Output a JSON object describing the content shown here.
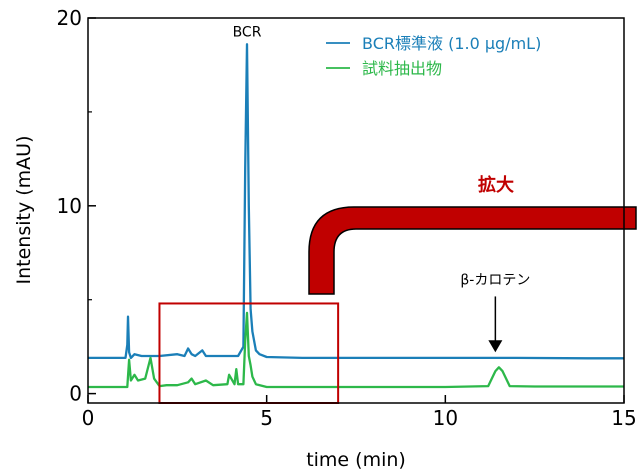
{
  "chart_data": {
    "type": "line",
    "title": "",
    "xlabel": "time (min)",
    "ylabel": "Intensity (mAU)",
    "xlim": [
      0,
      15
    ],
    "ylim": [
      -0.5,
      20
    ],
    "xticks": [
      0,
      5,
      10,
      15
    ],
    "yticks": [
      0,
      10,
      20
    ],
    "legend_position": "top-right",
    "series": [
      {
        "name": "BCR標準液 (1.0 µg/mL)",
        "color": "#1b7fb8",
        "x": [
          0.0,
          1.05,
          1.1,
          1.12,
          1.15,
          1.2,
          1.3,
          1.5,
          2.0,
          2.5,
          2.7,
          2.8,
          2.9,
          3.0,
          3.2,
          3.3,
          3.4,
          3.6,
          4.0,
          4.2,
          4.35,
          4.4,
          4.45,
          4.5,
          4.55,
          4.6,
          4.7,
          4.8,
          5.0,
          6.0,
          8.0,
          10.0,
          11.0,
          11.5,
          12.0,
          14.0,
          15.0
        ],
        "y": [
          1.9,
          1.9,
          2.6,
          4.1,
          2.2,
          1.9,
          2.1,
          2.0,
          2.0,
          2.1,
          2.0,
          2.4,
          2.1,
          2.0,
          2.3,
          2.0,
          2.0,
          2.0,
          2.0,
          2.0,
          2.5,
          12.0,
          18.6,
          10.0,
          4.5,
          3.3,
          2.3,
          2.1,
          1.95,
          1.9,
          1.9,
          1.9,
          1.9,
          1.9,
          1.9,
          1.88,
          1.88
        ]
      },
      {
        "name": "試料抽出物",
        "color": "#2db84a",
        "x": [
          0.0,
          1.1,
          1.15,
          1.2,
          1.3,
          1.4,
          1.6,
          1.75,
          1.85,
          2.0,
          2.2,
          2.5,
          2.8,
          2.9,
          3.0,
          3.3,
          3.5,
          3.9,
          3.95,
          4.1,
          4.15,
          4.2,
          4.35,
          4.4,
          4.45,
          4.5,
          4.55,
          4.6,
          4.7,
          5.0,
          6.0,
          8.0,
          10.0,
          11.2,
          11.4,
          11.5,
          11.6,
          11.8,
          12.5,
          14.0,
          15.0
        ],
        "y": [
          0.35,
          0.35,
          1.8,
          0.7,
          1.0,
          0.7,
          0.8,
          1.9,
          0.8,
          0.4,
          0.45,
          0.45,
          0.6,
          0.8,
          0.5,
          0.7,
          0.45,
          0.5,
          1.0,
          0.5,
          1.3,
          0.5,
          0.5,
          2.8,
          4.3,
          2.0,
          1.5,
          0.9,
          0.5,
          0.35,
          0.35,
          0.35,
          0.35,
          0.4,
          1.2,
          1.4,
          1.2,
          0.4,
          0.38,
          0.38,
          0.38
        ]
      }
    ],
    "annotations": [
      {
        "text": "BCR",
        "x": 4.45,
        "y": 18.9
      },
      {
        "text": "β-カロテン",
        "x": 11.4,
        "y": 5.6,
        "arrow_to": [
          11.4,
          2.2
        ]
      },
      {
        "text": "拡大",
        "color": "#c00000"
      }
    ],
    "zoom_box": {
      "x": [
        2.0,
        7.0
      ],
      "y": [
        -0.5,
        4.8
      ],
      "color": "#c00000"
    }
  }
}
